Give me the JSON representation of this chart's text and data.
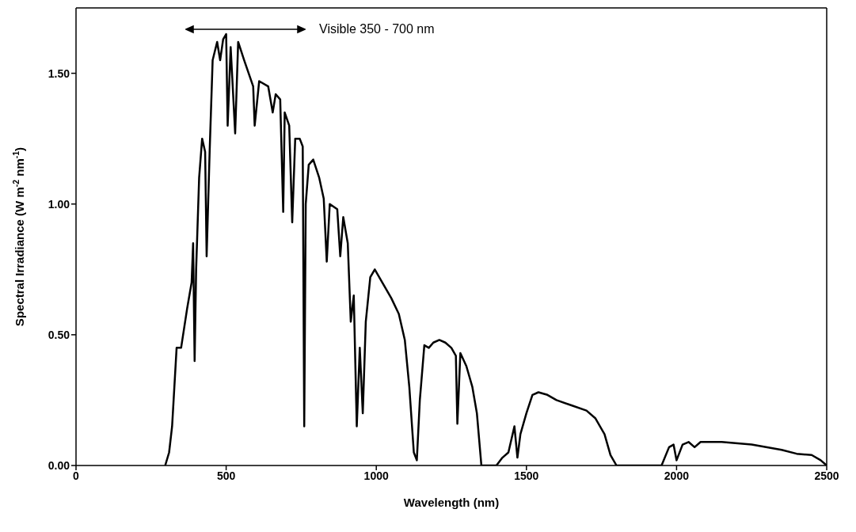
{
  "chart_data": {
    "type": "line",
    "xlabel": "Wavelength (nm)",
    "ylabel": "Spectral Irradiance (W m$^{-2}$ nm$^{-1}$)",
    "annotations": [
      "Visible 350 - 700 nm"
    ],
    "xlim": [
      0,
      2500
    ],
    "xticks": [
      0,
      500,
      1000,
      1500,
      2000,
      2500
    ],
    "ylim": [
      0,
      1.75
    ],
    "yticks": [
      {
        "value": 0,
        "label": "0.00"
      },
      {
        "value": 0.5,
        "label": "0.50"
      },
      {
        "value": 1,
        "label": "1.00"
      },
      {
        "value": 1.5,
        "label": "1.50"
      }
    ],
    "grid": false,
    "legend": false,
    "marker": "none",
    "line_style": "solid",
    "series": [
      {
        "color": "#000000",
        "x": [
          297,
          310,
          320,
          335,
          350,
          370,
          385,
          390,
          395,
          400,
          410,
          420,
          430,
          435,
          445,
          455,
          470,
          480,
          490,
          500,
          505,
          515,
          530,
          540,
          560,
          575,
          590,
          595,
          610,
          640,
          655,
          665,
          680,
          690,
          695,
          710,
          720,
          730,
          745,
          755,
          760,
          765,
          775,
          790,
          810,
          825,
          835,
          845,
          870,
          880,
          890,
          905,
          915,
          925,
          935,
          945,
          955,
          965,
          980,
          995,
          1020,
          1050,
          1075,
          1095,
          1110,
          1125,
          1135,
          1145,
          1160,
          1175,
          1190,
          1210,
          1230,
          1250,
          1265,
          1270,
          1280,
          1300,
          1320,
          1335,
          1350,
          1400,
          1420,
          1440,
          1460,
          1470,
          1480,
          1500,
          1520,
          1540,
          1570,
          1600,
          1650,
          1700,
          1730,
          1760,
          1780,
          1800,
          1950,
          1975,
          1990,
          2000,
          2020,
          2040,
          2060,
          2080,
          2150,
          2250,
          2350,
          2400,
          2450,
          2480,
          2500
        ],
        "values": [
          0,
          0.05,
          0.15,
          0.45,
          0.45,
          0.6,
          0.7,
          0.85,
          0.4,
          0.75,
          1.1,
          1.25,
          1.2,
          0.8,
          1.2,
          1.55,
          1.62,
          1.55,
          1.63,
          1.65,
          1.3,
          1.6,
          1.27,
          1.62,
          1.55,
          1.5,
          1.45,
          1.3,
          1.47,
          1.45,
          1.35,
          1.42,
          1.4,
          0.97,
          1.35,
          1.3,
          0.93,
          1.25,
          1.25,
          1.22,
          0.15,
          1.0,
          1.15,
          1.17,
          1.1,
          1.02,
          0.78,
          1.0,
          0.98,
          0.8,
          0.95,
          0.85,
          0.55,
          0.65,
          0.15,
          0.45,
          0.2,
          0.55,
          0.72,
          0.75,
          0.7,
          0.64,
          0.58,
          0.48,
          0.3,
          0.05,
          0.02,
          0.25,
          0.46,
          0.45,
          0.47,
          0.48,
          0.47,
          0.45,
          0.42,
          0.16,
          0.43,
          0.38,
          0.3,
          0.2,
          0,
          0,
          0.03,
          0.05,
          0.15,
          0.03,
          0.12,
          0.2,
          0.27,
          0.28,
          0.27,
          0.25,
          0.23,
          0.21,
          0.18,
          0.12,
          0.04,
          0,
          0,
          0.07,
          0.08,
          0.02,
          0.08,
          0.09,
          0.07,
          0.09,
          0.09,
          0.08,
          0.06,
          0.045,
          0.04,
          0.02,
          0
        ]
      }
    ]
  }
}
